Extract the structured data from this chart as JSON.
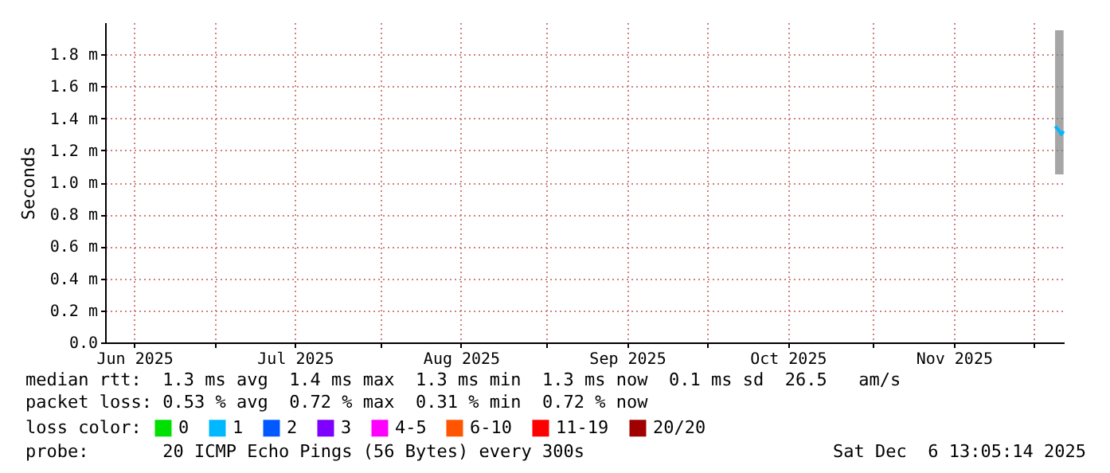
{
  "chart_data": {
    "type": "line",
    "ylabel": "Seconds",
    "xlim": [
      "2025-06-10T13:05",
      "2025-12-06T13:05"
    ],
    "xticks": [
      {
        "value": "2025-06-16",
        "label": "Jun 2025"
      },
      {
        "value": "2025-07-01",
        "label": null
      },
      {
        "value": "2025-07-16",
        "label": "Jul 2025"
      },
      {
        "value": "2025-08-01",
        "label": null
      },
      {
        "value": "2025-08-16",
        "label": "Aug 2025"
      },
      {
        "value": "2025-09-01",
        "label": null
      },
      {
        "value": "2025-09-16",
        "label": "Sep 2025"
      },
      {
        "value": "2025-10-01",
        "label": null
      },
      {
        "value": "2025-10-16",
        "label": "Oct 2025"
      },
      {
        "value": "2025-11-01",
        "label": null
      },
      {
        "value": "2025-11-16",
        "label": "Nov 2025"
      },
      {
        "value": "2025-12-01",
        "label": null
      }
    ],
    "ylim": [
      0,
      2.0
    ],
    "yticks": [
      {
        "value": 0,
        "label": "0.0"
      },
      {
        "value": 0.2,
        "label": "0.2 m"
      },
      {
        "value": 0.4,
        "label": "0.4 m"
      },
      {
        "value": 0.6,
        "label": "0.6 m"
      },
      {
        "value": 0.8,
        "label": "0.8 m"
      },
      {
        "value": 1.0,
        "label": "1.0 m"
      },
      {
        "value": 1.2,
        "label": "1.2 m"
      },
      {
        "value": 1.4,
        "label": "1.4 m"
      },
      {
        "value": 1.6,
        "label": "1.6 m"
      },
      {
        "value": 1.8,
        "label": "1.8 m"
      }
    ],
    "x": [
      "2025-12-04T22:00",
      "2025-12-05T12:00",
      "2025-12-06T02:00",
      "2025-12-06T12:00"
    ],
    "series": [
      {
        "name": "0",
        "color": "#00e000",
        "values": [
          null,
          null,
          null,
          null
        ]
      },
      {
        "name": "1",
        "color": "#00b8ff",
        "values": [
          1.35,
          1.33,
          1.3,
          1.32
        ],
        "lower": [
          1.05,
          1.05,
          1.05,
          1.05
        ],
        "upper": [
          1.95,
          1.95,
          1.95,
          1.95
        ]
      },
      {
        "name": "2",
        "color": "#0059ff",
        "values": [
          null,
          null,
          null,
          null
        ]
      },
      {
        "name": "3",
        "color": "#7e00ff",
        "values": [
          null,
          null,
          null,
          null
        ]
      },
      {
        "name": "4-5",
        "color": "#ff00ff",
        "values": [
          null,
          null,
          null,
          null
        ]
      },
      {
        "name": "6-10",
        "color": "#ff5500",
        "values": [
          null,
          null,
          null,
          null
        ]
      },
      {
        "name": "11-19",
        "color": "#ff0000",
        "values": [
          null,
          null,
          null,
          null
        ]
      },
      {
        "name": "20/20",
        "color": "#a10000",
        "values": [
          null,
          null,
          null,
          null
        ]
      }
    ],
    "legend_title": "loss color:",
    "legend": "bottom",
    "grid": true,
    "line_style": "solid",
    "annotations": [
      "median rtt:  1.3 ms avg  1.4 ms max  1.3 ms min  1.3 ms now  0.1 ms sd  26.5   am/s",
      "packet loss: 0.53 % avg  0.72 % max  0.31 % min  0.72 % now",
      "probe:       20 ICMP Echo Pings (56 Bytes) every 300s",
      "Sat Dec  6 13:05:14 2025"
    ]
  }
}
